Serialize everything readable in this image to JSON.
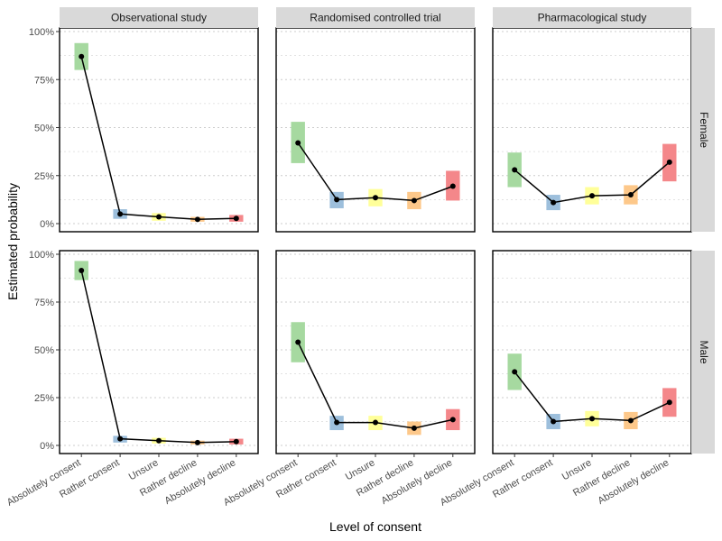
{
  "chart_data": {
    "type": "line",
    "xlabel": "Level of consent",
    "ylabel": "Estimated probability",
    "categories": [
      "Absolutely consent",
      "Rather consent",
      "Unsure",
      "Rather decline",
      "Absolutely decline"
    ],
    "category_colors": [
      "#a6d9a0",
      "#9dbfdc",
      "#ffff99",
      "#fdc88a",
      "#f4878a"
    ],
    "columns": [
      "Observational study",
      "Randomised controlled trial",
      "Pharmacological study"
    ],
    "rows": [
      "Female",
      "Male"
    ],
    "ylim": [
      0,
      1
    ],
    "yticks": [
      0,
      0.25,
      0.5,
      0.75,
      1.0
    ],
    "ytick_labels": [
      "0%",
      "25%",
      "50%",
      "75%",
      "100%"
    ],
    "panels": [
      {
        "row": "Female",
        "column": "Observational study",
        "estimate": [
          0.87,
          0.05,
          0.035,
          0.022,
          0.027
        ],
        "lower": [
          0.8,
          0.025,
          0.015,
          0.01,
          0.01
        ],
        "upper": [
          0.94,
          0.075,
          0.055,
          0.035,
          0.045
        ]
      },
      {
        "row": "Female",
        "column": "Randomised controlled trial",
        "estimate": [
          0.42,
          0.125,
          0.135,
          0.12,
          0.195
        ],
        "lower": [
          0.315,
          0.08,
          0.09,
          0.075,
          0.12
        ],
        "upper": [
          0.53,
          0.165,
          0.18,
          0.165,
          0.275
        ]
      },
      {
        "row": "Female",
        "column": "Pharmacological study",
        "estimate": [
          0.28,
          0.11,
          0.145,
          0.15,
          0.32
        ],
        "lower": [
          0.19,
          0.07,
          0.1,
          0.1,
          0.22
        ],
        "upper": [
          0.37,
          0.15,
          0.19,
          0.2,
          0.415
        ]
      },
      {
        "row": "Male",
        "column": "Observational study",
        "estimate": [
          0.915,
          0.035,
          0.025,
          0.015,
          0.02
        ],
        "lower": [
          0.865,
          0.015,
          0.01,
          0.005,
          0.005
        ],
        "upper": [
          0.965,
          0.05,
          0.04,
          0.025,
          0.035
        ]
      },
      {
        "row": "Male",
        "column": "Randomised controlled trial",
        "estimate": [
          0.54,
          0.12,
          0.12,
          0.09,
          0.135
        ],
        "lower": [
          0.435,
          0.08,
          0.08,
          0.055,
          0.08
        ],
        "upper": [
          0.645,
          0.155,
          0.155,
          0.125,
          0.19
        ]
      },
      {
        "row": "Male",
        "column": "Pharmacological study",
        "estimate": [
          0.385,
          0.125,
          0.14,
          0.13,
          0.225
        ],
        "lower": [
          0.29,
          0.085,
          0.1,
          0.085,
          0.15
        ],
        "upper": [
          0.48,
          0.165,
          0.18,
          0.175,
          0.3
        ]
      }
    ]
  }
}
